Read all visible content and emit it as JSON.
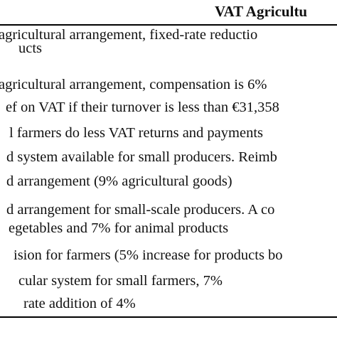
{
  "table": {
    "header": "VAT Agricultu",
    "rows": [
      {
        "lines": [
          "agricultural arrangement, fixed-rate reductio",
          "ucts"
        ]
      },
      {
        "lines": [
          "agricultural arrangement, compensation is 6%"
        ]
      },
      {
        "lines": [
          "ef on VAT if their turnover is less than €31,358"
        ]
      },
      {
        "lines": [
          "l farmers do less VAT returns and payments"
        ]
      },
      {
        "lines": [
          "d system available for small producers. Reimb"
        ]
      },
      {
        "lines": [
          "d arrangement (9% agricultural goods)"
        ]
      },
      {
        "lines": [
          "d arrangement for small-scale producers. A co",
          "egetables and 7% for animal products"
        ]
      },
      {
        "lines": [
          "ision for farmers (5% increase for products bo"
        ]
      },
      {
        "lines": [
          "cular system for small farmers, 7%"
        ]
      },
      {
        "lines": [
          "rate addition of 4%"
        ]
      }
    ]
  }
}
